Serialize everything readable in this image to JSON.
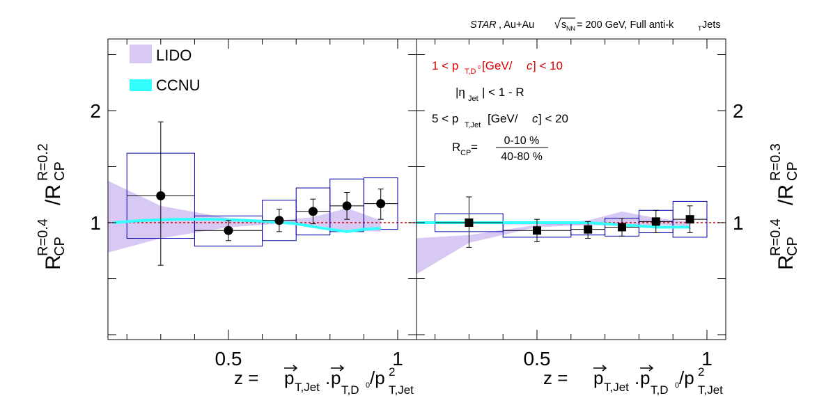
{
  "header": {
    "experiment": "STAR",
    "system": ", Au+Au",
    "energy_prefix": "s",
    "energy_sub": "NN",
    "energy_value": " = 200 GeV, Full anti-k",
    "jet_sub": "T",
    "jet_suffix": " Jets"
  },
  "left_ylabel": {
    "main1": "R",
    "sub1": "CP",
    "sup1": "R=0.4",
    "slash": "/R",
    "sub2": "CP",
    "sup2": "R=0.2"
  },
  "right_ylabel": {
    "main1": "R",
    "sub1": "CP",
    "sup1": "R=0.4",
    "slash": "/R",
    "sub2": "CP",
    "sup2": "R=0.3"
  },
  "xlabel": {
    "z": "z =",
    "p1": "p",
    "p1sub": "T,Jet",
    "dot": ".",
    "p2": "p",
    "p2sub": "T,D",
    "p2subsup": "0",
    "slash": "/p",
    "p3sup": "2",
    "p3sub": "T,Jet"
  },
  "legend": [
    {
      "label": "LIDO",
      "color": "#d8c8f4"
    },
    {
      "label": "CCNU",
      "color": "#33ffff"
    }
  ],
  "annotations": {
    "ptD": {
      "pre": "1 < p",
      "sub": "T,D",
      "subsup": "0",
      "post1": " [GeV/",
      "italic": "c",
      "post2": "] < 10",
      "color": "#dd0000"
    },
    "eta": {
      "pre": "|η",
      "sub": "Jet",
      "post": "| < 1 - R"
    },
    "ptjet": {
      "pre": "5 < p",
      "sub": "T,Jet",
      "post1": " [GeV/",
      "italic": "c",
      "post2": "] < 20"
    },
    "rcp": {
      "pre": "R",
      "sub": "CP",
      "eq": " =",
      "num": "0-10 %",
      "den": "40-80 %"
    }
  },
  "chart_data": [
    {
      "type": "scatter",
      "panel": "left",
      "xlim": [
        0.14,
        1.06
      ],
      "ylim": [
        0.0,
        2.6
      ],
      "ymin_display": 0.0,
      "xticks": [
        0.5,
        1
      ],
      "xticklabels": [
        "0.5",
        "1"
      ],
      "yticks": [
        1,
        2
      ],
      "yticklabels": [
        "1",
        "2"
      ],
      "reference_line": 1.0,
      "marker": "circle",
      "points": [
        {
          "x": 0.3,
          "xlo": 0.2,
          "xhi": 0.4,
          "y": 1.24,
          "stat_lo": 0.62,
          "stat_hi": 0.66,
          "sys_lo": 0.38,
          "sys_hi": 0.38
        },
        {
          "x": 0.5,
          "xlo": 0.4,
          "xhi": 0.6,
          "y": 0.93,
          "stat_lo": 0.09,
          "stat_hi": 0.09,
          "sys_lo": 0.14,
          "sys_hi": 0.13
        },
        {
          "x": 0.65,
          "xlo": 0.6,
          "xhi": 0.7,
          "y": 1.02,
          "stat_lo": 0.1,
          "stat_hi": 0.1,
          "sys_lo": 0.18,
          "sys_hi": 0.18
        },
        {
          "x": 0.75,
          "xlo": 0.7,
          "xhi": 0.8,
          "y": 1.1,
          "stat_lo": 0.11,
          "stat_hi": 0.11,
          "sys_lo": 0.21,
          "sys_hi": 0.21
        },
        {
          "x": 0.85,
          "xlo": 0.8,
          "xhi": 0.9,
          "y": 1.15,
          "stat_lo": 0.12,
          "stat_hi": 0.12,
          "sys_lo": 0.23,
          "sys_hi": 0.24
        },
        {
          "x": 0.95,
          "xlo": 0.9,
          "xhi": 1.0,
          "y": 1.17,
          "stat_lo": 0.14,
          "stat_hi": 0.13,
          "sys_lo": 0.23,
          "sys_hi": 0.23
        }
      ],
      "lido_band": {
        "x": [
          0.14,
          0.3,
          0.5,
          0.65,
          0.75,
          0.85,
          0.95
        ],
        "lo": [
          0.73,
          0.86,
          0.96,
          0.99,
          0.98,
          0.93,
          0.92
        ],
        "hi": [
          1.38,
          1.15,
          1.04,
          1.02,
          1.05,
          1.13,
          1.02
        ]
      },
      "ccnu_curve": {
        "x": [
          0.16,
          0.25,
          0.35,
          0.45,
          0.55,
          0.62,
          0.7,
          0.78,
          0.85,
          0.9,
          0.95
        ],
        "y": [
          1.0,
          1.02,
          1.03,
          1.03,
          1.02,
          1.01,
          0.99,
          0.95,
          0.92,
          0.94,
          0.95
        ]
      }
    },
    {
      "type": "scatter",
      "panel": "right",
      "xlim": [
        0.14,
        1.06
      ],
      "ylim": [
        0.0,
        2.6
      ],
      "ymin_display": 0.0,
      "xticks": [
        0.5,
        1
      ],
      "xticklabels": [
        "0.5",
        "1"
      ],
      "yticks": [
        1,
        2
      ],
      "yticklabels": [
        "1",
        "2"
      ],
      "reference_line": 1.0,
      "marker": "square",
      "points": [
        {
          "x": 0.3,
          "xlo": 0.2,
          "xhi": 0.4,
          "y": 1.0,
          "stat_lo": 0.22,
          "stat_hi": 0.23,
          "sys_lo": 0.08,
          "sys_hi": 0.08
        },
        {
          "x": 0.5,
          "xlo": 0.4,
          "xhi": 0.6,
          "y": 0.93,
          "stat_lo": 0.1,
          "stat_hi": 0.1,
          "sys_lo": 0.06,
          "sys_hi": 0.06
        },
        {
          "x": 0.65,
          "xlo": 0.6,
          "xhi": 0.7,
          "y": 0.94,
          "stat_lo": 0.08,
          "stat_hi": 0.07,
          "sys_lo": 0.05,
          "sys_hi": 0.05
        },
        {
          "x": 0.75,
          "xlo": 0.7,
          "xhi": 0.8,
          "y": 0.96,
          "stat_lo": 0.08,
          "stat_hi": 0.08,
          "sys_lo": 0.08,
          "sys_hi": 0.08
        },
        {
          "x": 0.85,
          "xlo": 0.8,
          "xhi": 0.9,
          "y": 1.01,
          "stat_lo": 0.1,
          "stat_hi": 0.1,
          "sys_lo": 0.1,
          "sys_hi": 0.1
        },
        {
          "x": 0.95,
          "xlo": 0.9,
          "xhi": 1.0,
          "y": 1.03,
          "stat_lo": 0.12,
          "stat_hi": 0.12,
          "sys_lo": 0.16,
          "sys_hi": 0.16
        }
      ],
      "lido_band": {
        "x": [
          0.14,
          0.3,
          0.5,
          0.65,
          0.75,
          0.85,
          0.95
        ],
        "lo": [
          0.53,
          0.82,
          0.96,
          0.98,
          0.97,
          0.98,
          0.97
        ],
        "hi": [
          0.86,
          0.89,
          0.98,
          1.02,
          1.1,
          1.04,
          1.01
        ]
      },
      "ccnu_curve": {
        "x": [
          0.14,
          0.25,
          0.35,
          0.45,
          0.55,
          0.65,
          0.75,
          0.85,
          0.95
        ],
        "y": [
          1.0,
          1.0,
          1.0,
          1.0,
          1.0,
          1.0,
          0.98,
          0.96,
          0.96
        ]
      }
    }
  ],
  "colors": {
    "sys_box": "#0000aa",
    "reference_line": "#cc0000",
    "lido": "#d8c8f4",
    "ccnu": "#33ffff"
  }
}
